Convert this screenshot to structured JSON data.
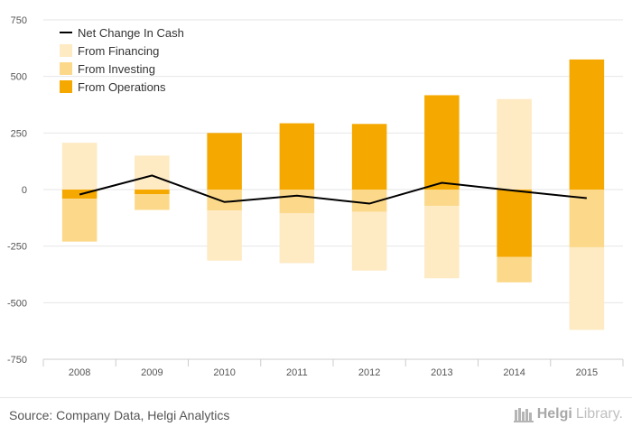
{
  "chart_data": {
    "type": "bar",
    "stacked": true,
    "categories": [
      "2008",
      "2009",
      "2010",
      "2011",
      "2012",
      "2013",
      "2014",
      "2015"
    ],
    "series": [
      {
        "name": "From Operations",
        "kind": "bar",
        "color": "#f5a800",
        "values": [
          -40,
          -20,
          250,
          293,
          290,
          417,
          -298,
          575
        ]
      },
      {
        "name": "From Investing",
        "kind": "bar",
        "color": "#fcd98a",
        "values": [
          -190,
          -70,
          -92,
          -105,
          -98,
          -72,
          -112,
          -255
        ]
      },
      {
        "name": "From Financing",
        "kind": "bar",
        "color": "#feeac3",
        "values": [
          207,
          150,
          -222,
          -220,
          -260,
          -320,
          400,
          -365
        ]
      },
      {
        "name": "Net Change In Cash",
        "kind": "line",
        "color": "#000000",
        "values": [
          -22,
          62,
          -55,
          -27,
          -62,
          30,
          -5,
          -38
        ]
      }
    ],
    "y_ticks": [
      750,
      500,
      250,
      0,
      -250,
      -500,
      -750
    ],
    "y_tick_labels": [
      "750",
      "500",
      "250",
      "0",
      "-250",
      "-500",
      "-750"
    ],
    "ylim": [
      -750,
      750
    ],
    "grid": true,
    "legend_position": "top-left",
    "legend_order": [
      "Net Change In Cash",
      "From Financing",
      "From Investing",
      "From Operations"
    ]
  },
  "footer": {
    "source": "Source: Company Data, Helgi Analytics",
    "logo_word": "Helgi",
    "logo_suffix": "Library."
  }
}
